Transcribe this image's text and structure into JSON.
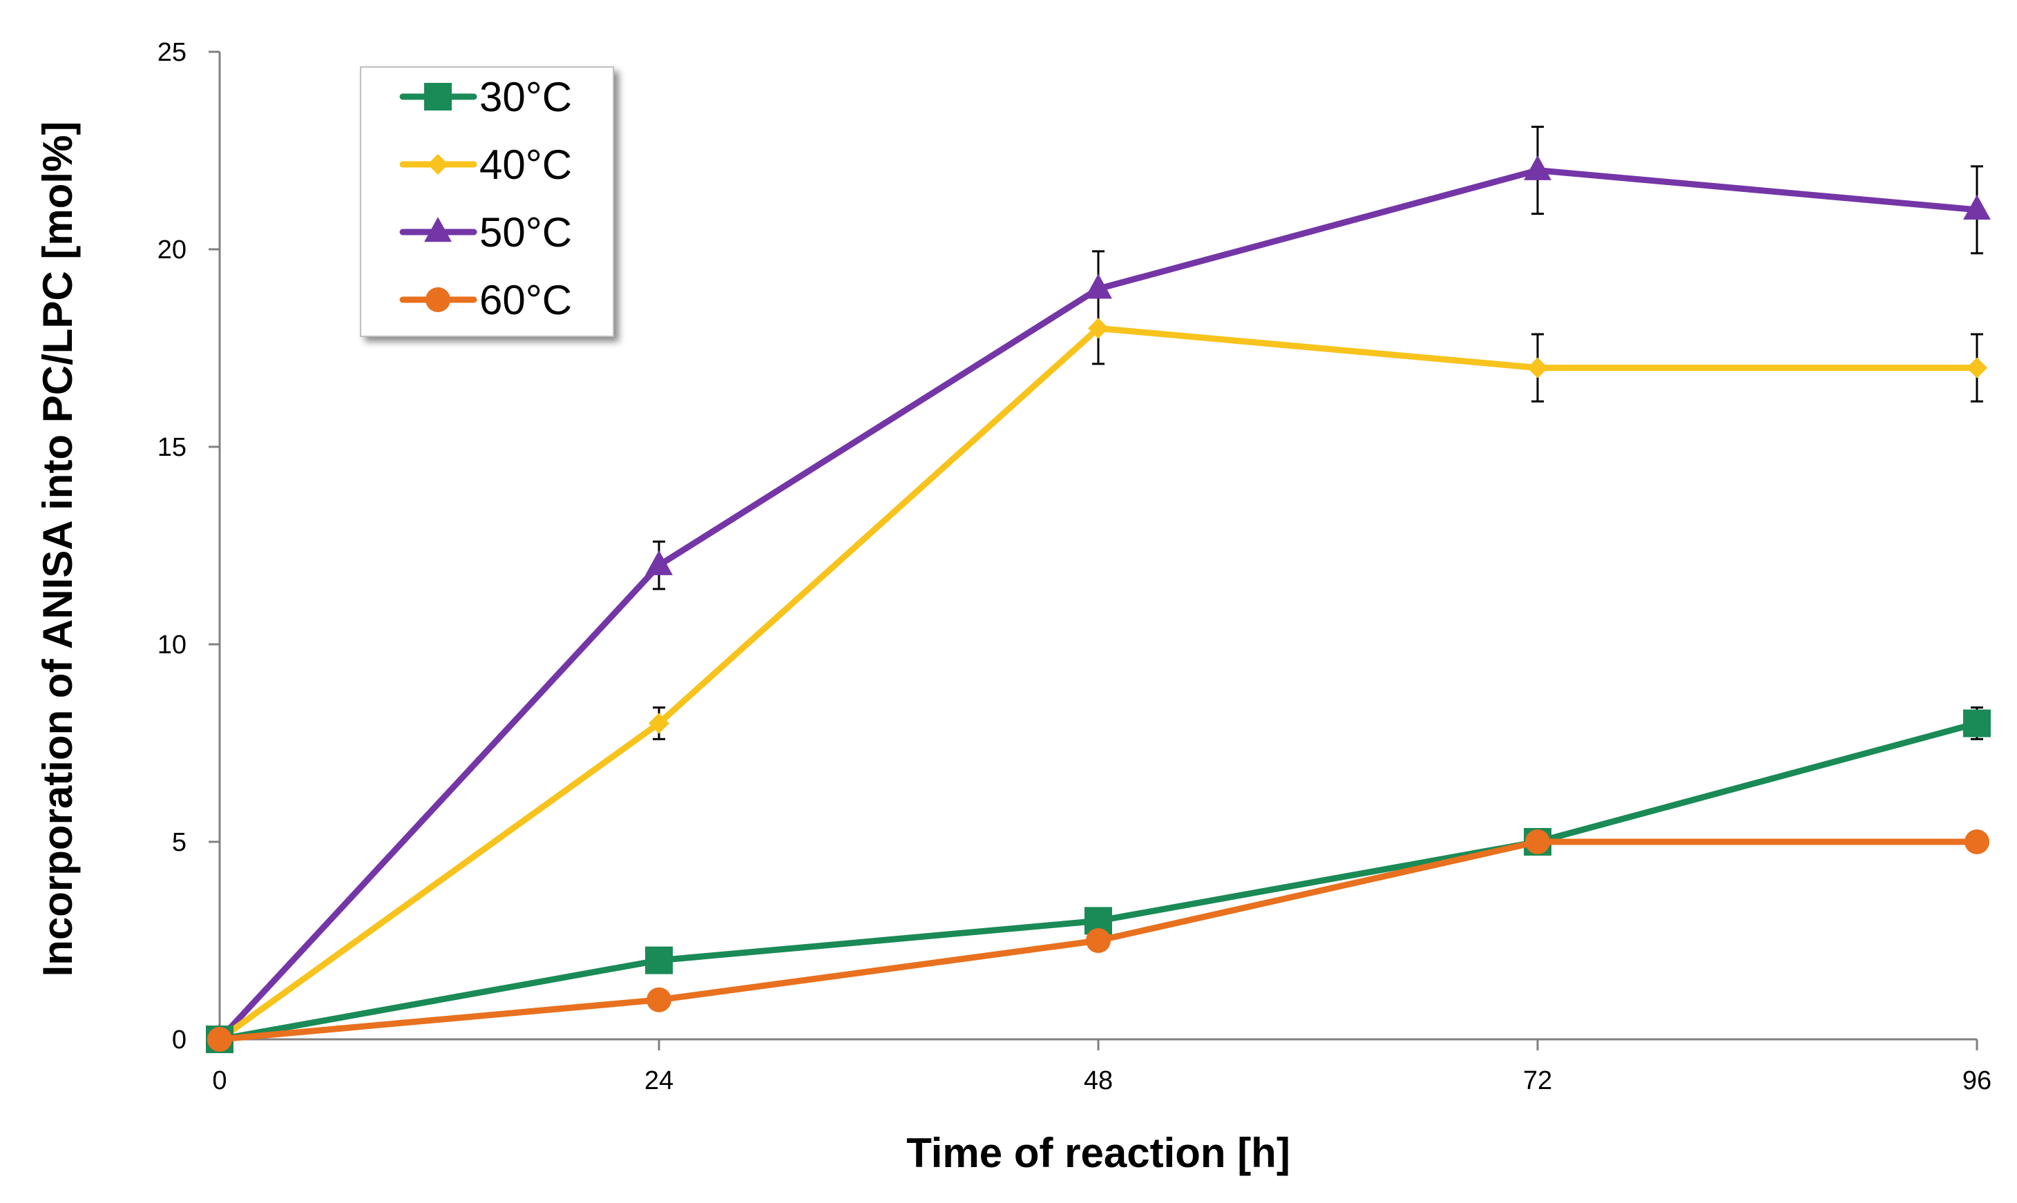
{
  "chart_data": {
    "type": "line",
    "title": "",
    "xlabel": "Time of reaction [h]",
    "ylabel": "Incorporation of ANISA into PC/LPC [mol%]",
    "x": [
      0,
      24,
      48,
      72,
      96
    ],
    "xlim": [
      0,
      96
    ],
    "ylim": [
      0,
      25
    ],
    "xticks": [
      "0",
      "24",
      "48",
      "72",
      "96"
    ],
    "yticks": [
      "0",
      "5",
      "10",
      "15",
      "20",
      "25"
    ],
    "grid": false,
    "legend_position": "top-left",
    "series": [
      {
        "name": "30°C",
        "color": "#1a8a56",
        "marker": "square",
        "values": [
          0,
          2,
          3,
          5,
          8
        ],
        "errors": [
          0,
          0,
          0,
          0,
          0.4
        ]
      },
      {
        "name": "40°C",
        "color": "#f7c31c",
        "marker": "diamond",
        "values": [
          0,
          8,
          18,
          17,
          17
        ],
        "errors": [
          0,
          0.4,
          0.9,
          0.85,
          0.85
        ]
      },
      {
        "name": "50°C",
        "color": "#7436a6",
        "marker": "triangle",
        "values": [
          0,
          12,
          19,
          22,
          21
        ],
        "errors": [
          0,
          0.6,
          0.95,
          1.1,
          1.1
        ]
      },
      {
        "name": "60°C",
        "color": "#e8701e",
        "marker": "circle",
        "values": [
          0,
          1,
          2.5,
          5,
          5
        ],
        "errors": [
          0,
          0,
          0,
          0,
          0.2
        ]
      }
    ]
  }
}
